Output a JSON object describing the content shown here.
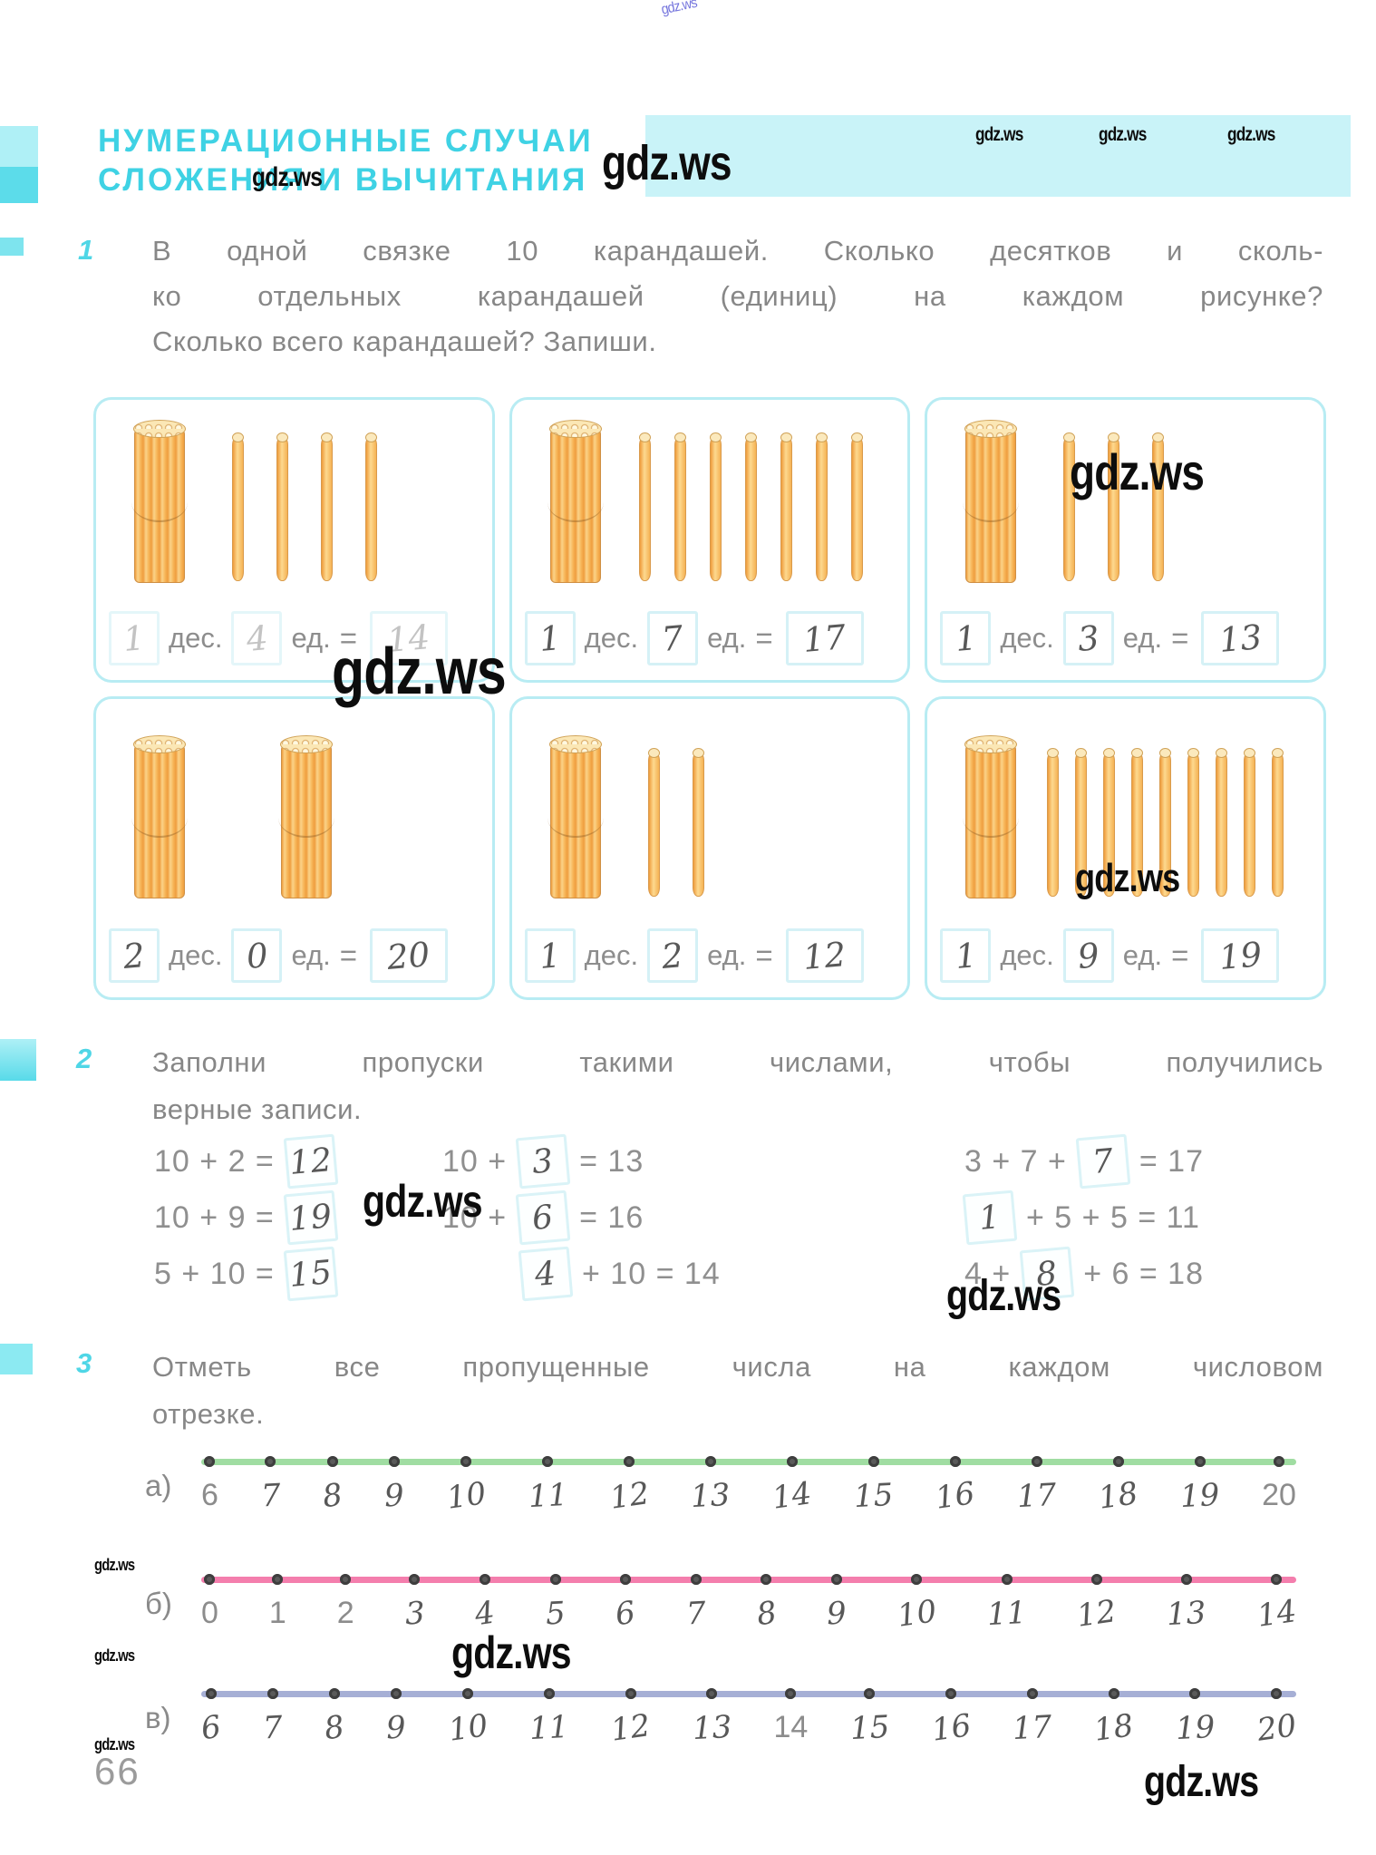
{
  "watermark": {
    "text": "gdz.ws"
  },
  "page": {
    "number": "66"
  },
  "header": {
    "title_line1": "НУМЕРАЦИОННЫЕ СЛУЧАИ",
    "title_line2": "СЛОЖЕНИЯ И ВЫЧИТАНИЯ"
  },
  "labels": {
    "tens": "дес.",
    "units": "ед.",
    "equals": "="
  },
  "task1": {
    "number": "1",
    "lines": [
      "В одной связке 10 карандашей. Сколько десятков и сколь-",
      "ко отдельных карандашей (единиц) на каждом рисунке?",
      "Сколько всего карандашей? Запиши."
    ],
    "boxes": [
      {
        "bundles": 1,
        "singles": 4,
        "tens": "1",
        "units": "4",
        "total": "14",
        "faint": true
      },
      {
        "bundles": 1,
        "singles": 7,
        "tens": "1",
        "units": "7",
        "total": "17",
        "faint": false
      },
      {
        "bundles": 1,
        "singles": 3,
        "tens": "1",
        "units": "3",
        "total": "13",
        "faint": false
      },
      {
        "bundles": 2,
        "singles": 0,
        "tens": "2",
        "units": "0",
        "total": "20",
        "faint": false
      },
      {
        "bundles": 1,
        "singles": 2,
        "tens": "1",
        "units": "2",
        "total": "12",
        "faint": false
      },
      {
        "bundles": 1,
        "singles": 9,
        "tens": "1",
        "units": "9",
        "total": "19",
        "faint": false
      }
    ]
  },
  "task2": {
    "number": "2",
    "lines": [
      "Заполни пропуски такими числами, чтобы получились",
      "верные записи."
    ],
    "equations": [
      {
        "tokens": [
          {
            "type": "print",
            "text": "10 + 2 ="
          },
          {
            "type": "hand",
            "text": "12"
          }
        ]
      },
      {
        "tokens": [
          {
            "type": "print",
            "text": "10 +"
          },
          {
            "type": "hand",
            "text": "3"
          },
          {
            "type": "print",
            "text": "= 13"
          }
        ]
      },
      {
        "tokens": [
          {
            "type": "print",
            "text": "3 + 7 +"
          },
          {
            "type": "hand",
            "text": "7"
          },
          {
            "type": "print",
            "text": "= 17"
          }
        ]
      },
      {
        "tokens": [
          {
            "type": "print",
            "text": "10 + 9 ="
          },
          {
            "type": "hand",
            "text": "19"
          }
        ]
      },
      {
        "tokens": [
          {
            "type": "print",
            "text": "10 +"
          },
          {
            "type": "hand",
            "text": "6"
          },
          {
            "type": "print",
            "text": "= 16"
          }
        ]
      },
      {
        "tokens": [
          {
            "type": "hand",
            "text": "1"
          },
          {
            "type": "print",
            "text": "+ 5 + 5 = 11"
          }
        ]
      },
      {
        "tokens": [
          {
            "type": "print",
            "text": "5 + 10 ="
          },
          {
            "type": "hand",
            "text": "15"
          }
        ]
      },
      {
        "tokens": [
          {
            "type": "hand",
            "text": "4"
          },
          {
            "type": "print",
            "text": "+ 10 = 14"
          }
        ]
      },
      {
        "tokens": [
          {
            "type": "print",
            "text": "4 +"
          },
          {
            "type": "hand",
            "text": "8"
          },
          {
            "type": "print",
            "text": "+ 6 = 18"
          }
        ]
      }
    ]
  },
  "task3": {
    "number": "3",
    "lines": [
      "Отметь все пропущенные числа на каждом числовом",
      "отрезке."
    ],
    "number_lines": [
      {
        "label": "а)",
        "color": "#8fd792",
        "ticks": [
          {
            "t": "6",
            "printed": true
          },
          {
            "t": "7"
          },
          {
            "t": "8"
          },
          {
            "t": "9"
          },
          {
            "t": "10"
          },
          {
            "t": "11"
          },
          {
            "t": "12"
          },
          {
            "t": "13"
          },
          {
            "t": "14"
          },
          {
            "t": "15"
          },
          {
            "t": "16"
          },
          {
            "t": "17"
          },
          {
            "t": "18"
          },
          {
            "t": "19"
          },
          {
            "t": "20",
            "printed": true
          }
        ]
      },
      {
        "label": "б)",
        "color": "#f2679f",
        "ticks": [
          {
            "t": "0",
            "printed": true
          },
          {
            "t": "1",
            "printed": true
          },
          {
            "t": "2",
            "printed": true
          },
          {
            "t": "3"
          },
          {
            "t": "4"
          },
          {
            "t": "5"
          },
          {
            "t": "6"
          },
          {
            "t": "7"
          },
          {
            "t": "8"
          },
          {
            "t": "9"
          },
          {
            "t": "10"
          },
          {
            "t": "11"
          },
          {
            "t": "12"
          },
          {
            "t": "13"
          },
          {
            "t": "14"
          }
        ]
      },
      {
        "label": "в)",
        "color": "#97a1ce",
        "ticks": [
          {
            "t": "6"
          },
          {
            "t": "7"
          },
          {
            "t": "8"
          },
          {
            "t": "9"
          },
          {
            "t": "10"
          },
          {
            "t": "11"
          },
          {
            "t": "12"
          },
          {
            "t": "13"
          },
          {
            "t": "14",
            "printed": true
          },
          {
            "t": "15"
          },
          {
            "t": "16"
          },
          {
            "t": "17"
          },
          {
            "t": "18"
          },
          {
            "t": "19"
          },
          {
            "t": "20"
          }
        ]
      }
    ]
  }
}
